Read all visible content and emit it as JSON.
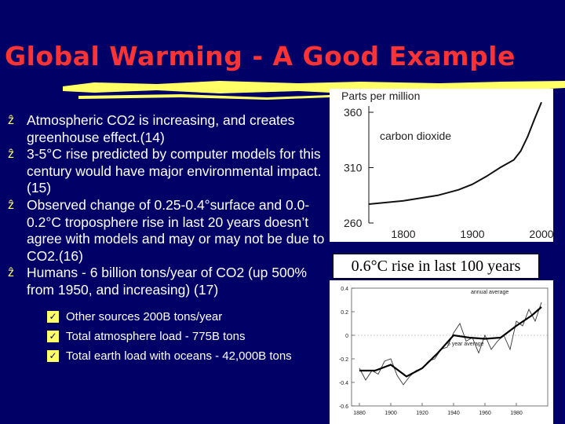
{
  "slide": {
    "title": "Global Warming - A Good Example",
    "bullets": [
      "Atmospheric CO2 is increasing, and creates greenhouse effect.(14)",
      "3-5°C rise predicted by computer models for this century would have major environmental impact. (15)",
      "Observed change of 0.25-0.4°surface and 0.0-0.2°C troposphere rise in last 20 years doesn’t agree with models and may or may not be due to CO2.(16)",
      "Humans - 6 billion tons/year of CO2 (up 500% from 1950, and increasing) (17)"
    ],
    "sub_bullets": [
      "Other sources 200B tons/year",
      "Total atmosphere load - 775B tons",
      "Total earth load with oceans - 42,000B tons"
    ],
    "caption": "0.6°C rise in last 100 years",
    "bullet_icon": "z-bullet-icon",
    "sub_bullet_icon": "checkmark-icon",
    "colors": {
      "background": "#000066",
      "title": "#ff3333",
      "accent": "#ffff66",
      "text": "#ffffff"
    }
  },
  "chart_data": [
    {
      "type": "line",
      "title": "Parts per million",
      "series": [
        {
          "name": "carbon dioxide",
          "x": [
            1750,
            1800,
            1850,
            1880,
            1900,
            1920,
            1940,
            1960,
            1970,
            1980,
            1990,
            2000
          ],
          "y": [
            277,
            280,
            285,
            290,
            295,
            302,
            310,
            317,
            325,
            338,
            354,
            369
          ]
        }
      ],
      "xticks": [
        "1800",
        "1900",
        "2000"
      ],
      "yticks": [
        "360",
        "310",
        "260"
      ],
      "xlim": [
        1750,
        2000
      ],
      "ylim": [
        260,
        360
      ]
    },
    {
      "type": "line",
      "series": [
        {
          "name": "annual average",
          "x": [
            1880,
            1884,
            1888,
            1892,
            1896,
            1900,
            1904,
            1908,
            1912,
            1916,
            1920,
            1924,
            1928,
            1932,
            1936,
            1940,
            1944,
            1948,
            1952,
            1956,
            1960,
            1964,
            1968,
            1972,
            1976,
            1980,
            1984,
            1988,
            1992,
            1996
          ],
          "y": [
            -0.28,
            -0.38,
            -0.3,
            -0.33,
            -0.22,
            -0.2,
            -0.34,
            -0.42,
            -0.35,
            -0.3,
            -0.28,
            -0.22,
            -0.2,
            -0.12,
            -0.1,
            0.02,
            0.1,
            -0.05,
            -0.02,
            -0.15,
            0.0,
            -0.12,
            -0.05,
            0.0,
            -0.12,
            0.12,
            0.08,
            0.22,
            0.12,
            0.28
          ]
        },
        {
          "name": "5 year average",
          "x": [
            1880,
            1890,
            1900,
            1910,
            1920,
            1930,
            1940,
            1950,
            1960,
            1970,
            1980,
            1990,
            1996
          ],
          "y": [
            -0.3,
            -0.3,
            -0.25,
            -0.35,
            -0.28,
            -0.15,
            0.0,
            -0.02,
            -0.03,
            -0.02,
            0.08,
            0.17,
            0.24
          ]
        }
      ],
      "xticks": [
        "1880",
        "1900",
        "1920",
        "1940",
        "1960",
        "1980"
      ],
      "yticks": [
        "0.4",
        "0.2",
        "0",
        "-0.2",
        "-0.4",
        "-0.6"
      ],
      "xlim": [
        1875,
        2000
      ],
      "ylim": [
        -0.6,
        0.4
      ]
    }
  ]
}
